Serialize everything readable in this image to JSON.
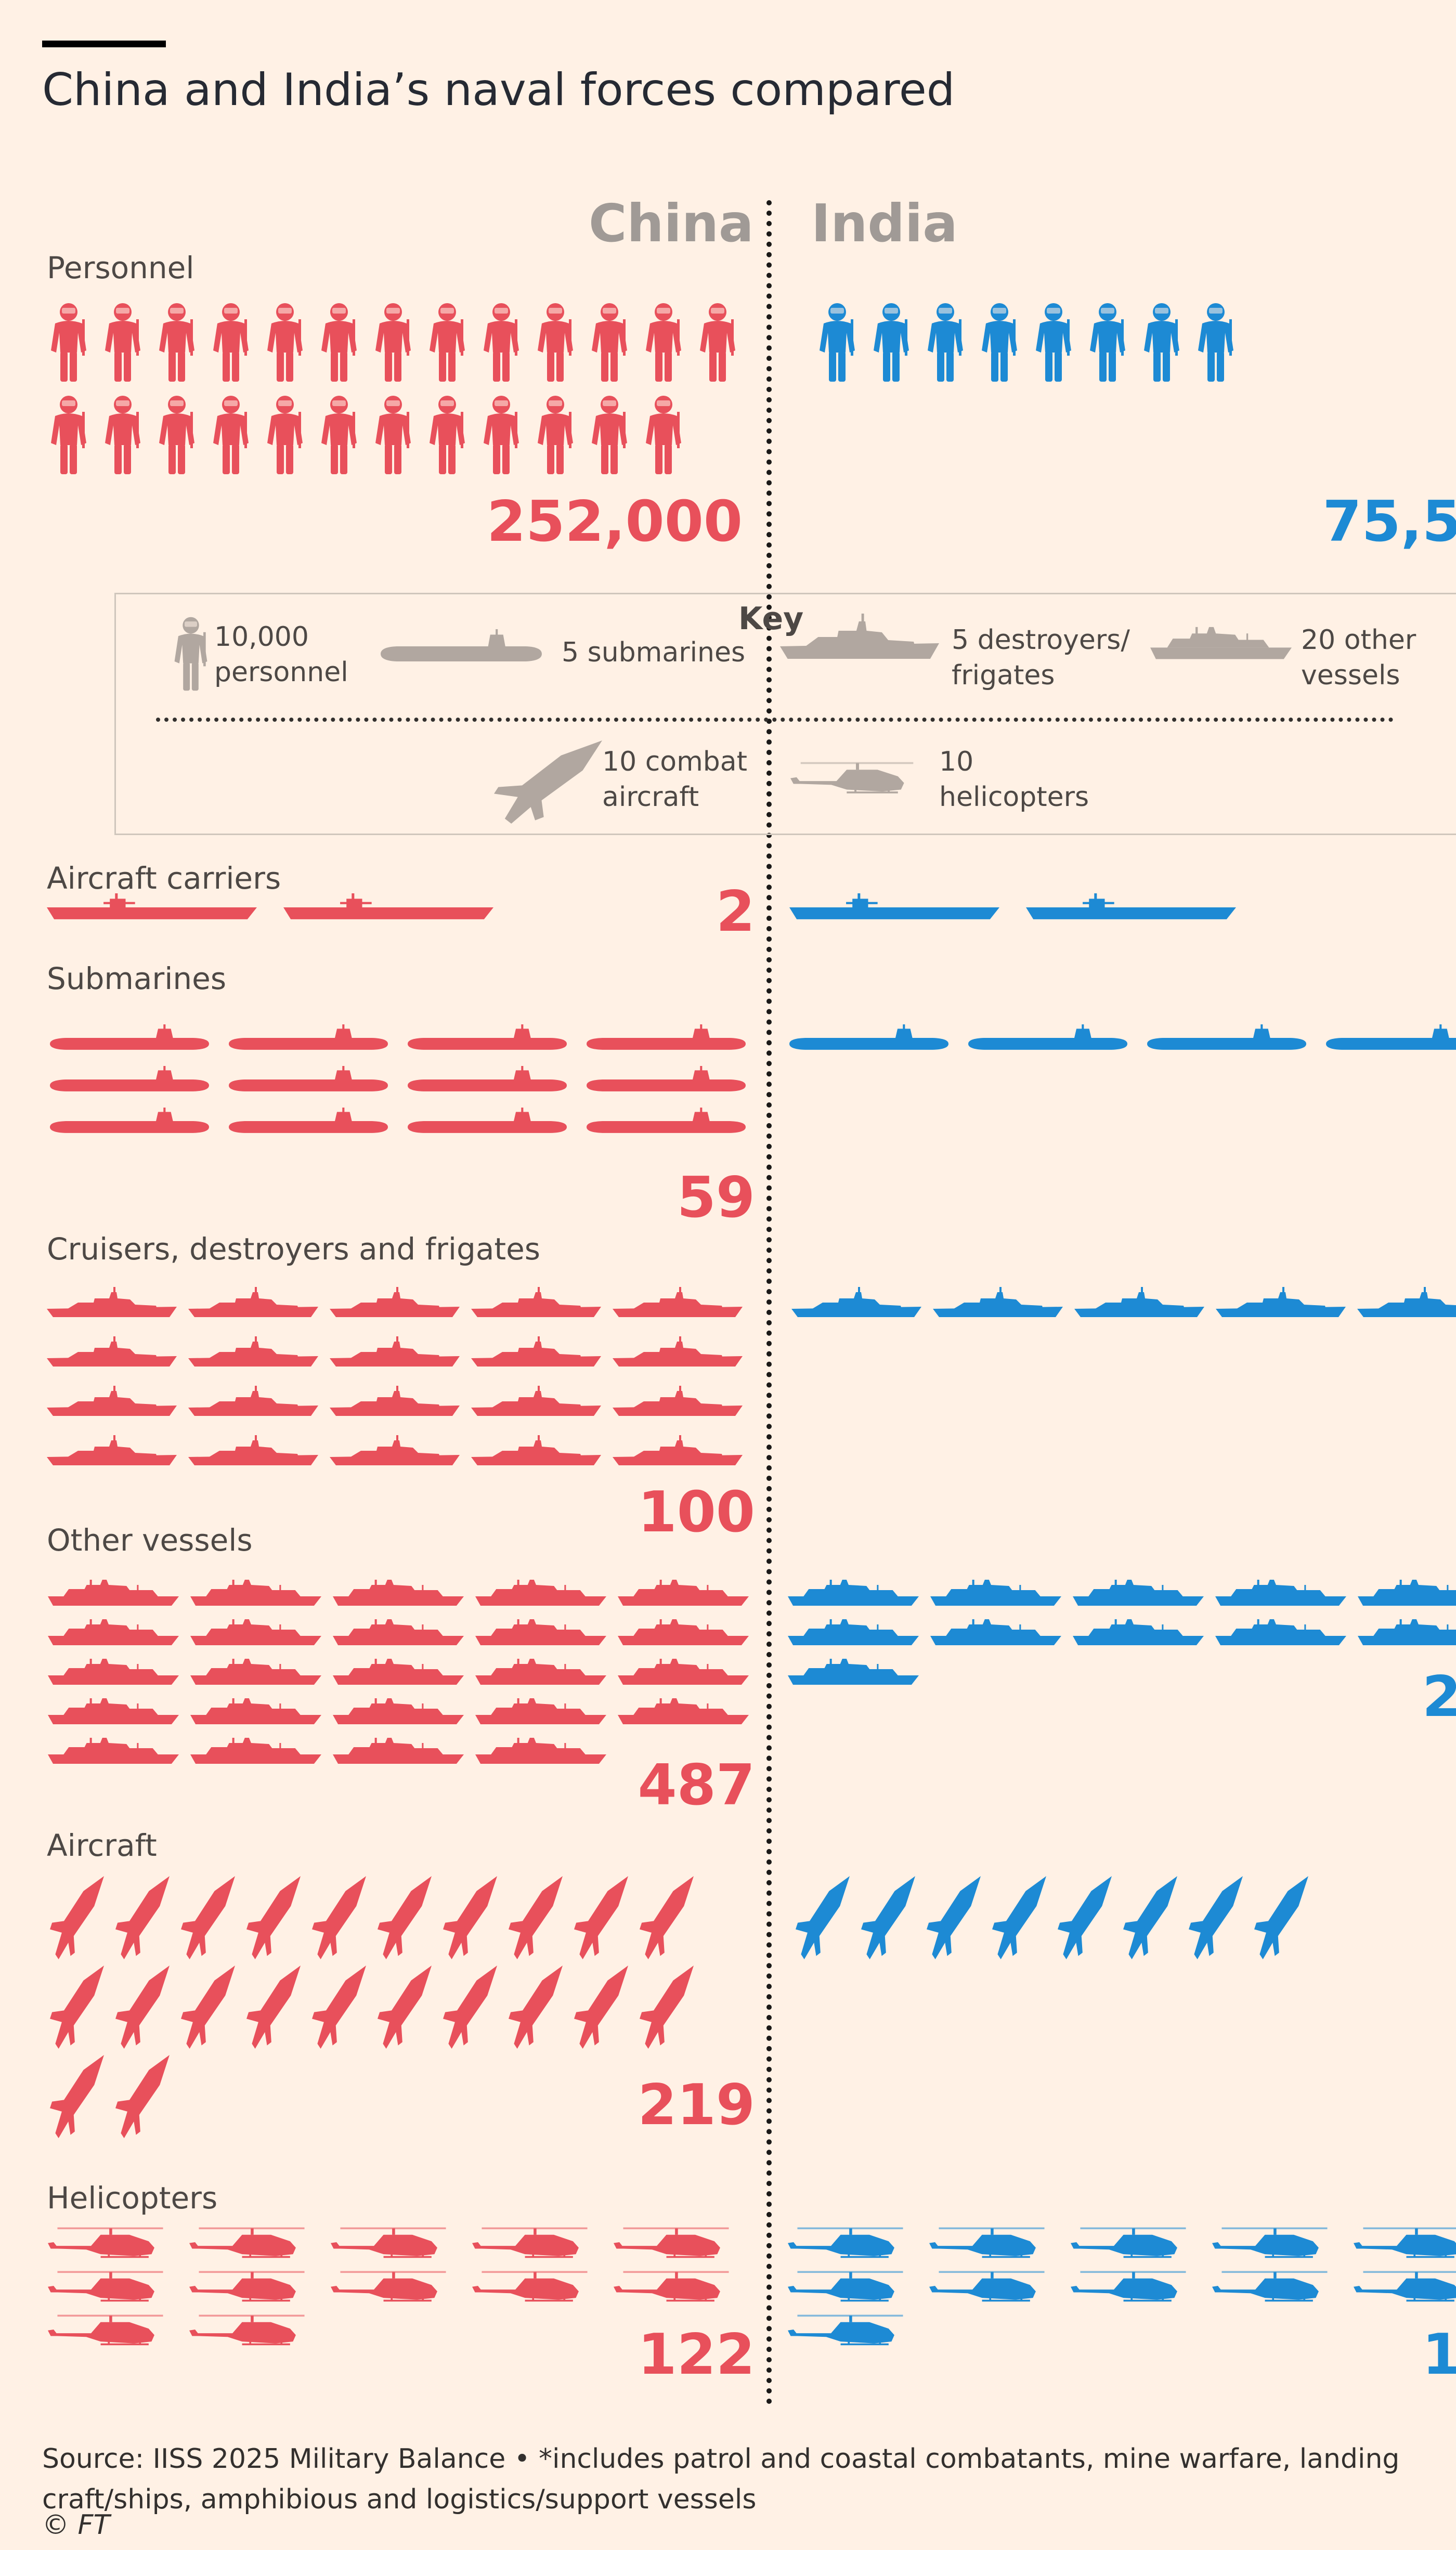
{
  "title": "China and India’s naval forces compared",
  "countries": {
    "china": "China",
    "india": "India"
  },
  "colors": {
    "china": "#E8505B",
    "india": "#1D8AD4",
    "key": "#B1A7A0",
    "background": "#FFF1E5"
  },
  "key": {
    "title": "Key",
    "items": [
      {
        "icon": "soldier-icon",
        "line1": "10,000",
        "line2": "personnel"
      },
      {
        "icon": "submarine-icon",
        "line1": "5 submarines",
        "line2": ""
      },
      {
        "icon": "destroyer-icon",
        "line1": "5 destroyers/",
        "line2": "frigates"
      },
      {
        "icon": "patrol-vessel-icon",
        "line1": "20 other",
        "line2": "vessels"
      },
      {
        "icon": "combat-aircraft-icon",
        "line1": "10 combat",
        "line2": "aircraft"
      },
      {
        "icon": "helicopter-icon",
        "line1": "10",
        "line2": "helicopters"
      }
    ]
  },
  "chart_data": {
    "type": "pictogram",
    "title": "China and India’s naval forces compared",
    "series": [
      {
        "name": "China"
      },
      {
        "name": "India"
      }
    ],
    "categories": [
      {
        "id": "personnel",
        "label": "Personnel",
        "china_label": "252,000",
        "india_label": "75,5",
        "china_icons": 25,
        "india_icons": 8,
        "unit": "10,000 personnel"
      },
      {
        "id": "carriers",
        "label": "Aircraft carriers",
        "china_label": "2",
        "india_label": "",
        "china_icons": 2,
        "india_icons": 2,
        "unit": "1 aircraft carrier"
      },
      {
        "id": "submarines",
        "label": "Submarines",
        "china_label": "59",
        "india_label": "",
        "china_icons": 12,
        "india_icons": 4,
        "unit": "5 submarines"
      },
      {
        "id": "destroyers",
        "label": "Cruisers, destroyers and frigates",
        "china_label": "100",
        "india_label": "",
        "china_icons": 20,
        "india_icons": 5,
        "unit": "5 destroyers/frigates"
      },
      {
        "id": "other",
        "label": "Other vessels",
        "china_label": "487",
        "india_label": "2",
        "china_icons": 24,
        "india_icons": 11,
        "unit": "20 other vessels"
      },
      {
        "id": "aircraft",
        "label": "Aircraft",
        "china_label": "219",
        "india_label": "",
        "china_icons": 22,
        "india_icons": 8,
        "unit": "10 combat aircraft"
      },
      {
        "id": "helicopters",
        "label": "Helicopters",
        "china_label": "122",
        "india_label": "1",
        "china_icons": 12,
        "india_icons": 11,
        "unit": "10 helicopters"
      }
    ]
  },
  "footer": {
    "source": "Source: IISS 2025 Military Balance • *includes patrol and coastal combatants, mine warfare, landing craft/ships, amphibious and logistics/support vessels",
    "copyright": "© FT"
  }
}
